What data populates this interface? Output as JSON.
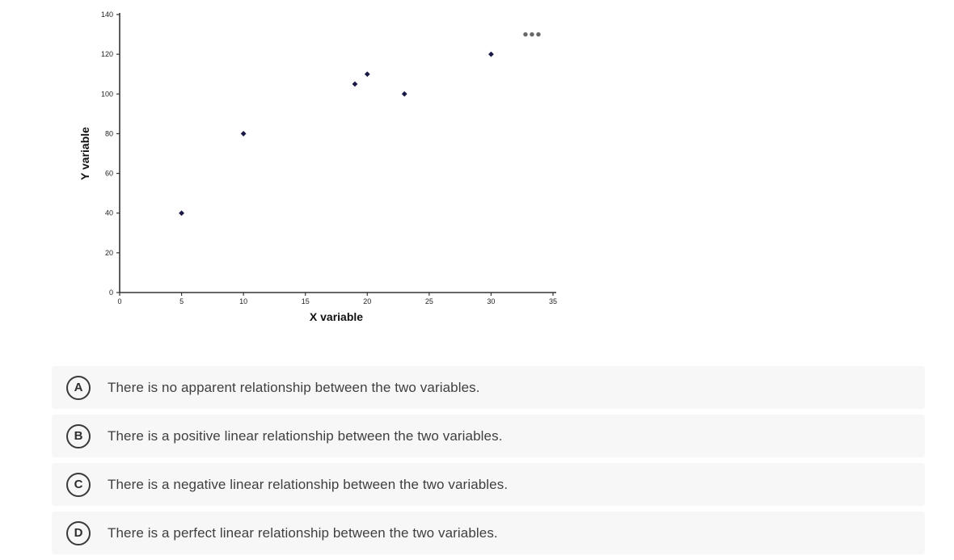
{
  "chart_data": {
    "type": "scatter",
    "title": "",
    "xlabel": "X variable",
    "ylabel": "Y variable",
    "xlim": [
      0,
      35
    ],
    "ylim": [
      0,
      140
    ],
    "xticks": [
      0,
      5,
      10,
      15,
      20,
      25,
      30,
      35
    ],
    "yticks": [
      0,
      20,
      40,
      60,
      80,
      100,
      120,
      140
    ],
    "grid": false,
    "legend": "none",
    "marker": "diamond",
    "marker_color": "#191946",
    "axis_color": "#333333",
    "tick_label_color": "#222222",
    "points": [
      {
        "x": 5,
        "y": 40
      },
      {
        "x": 10,
        "y": 80
      },
      {
        "x": 19,
        "y": 105
      },
      {
        "x": 20,
        "y": 110
      },
      {
        "x": 23,
        "y": 100
      },
      {
        "x": 30,
        "y": 120
      }
    ],
    "annotations": [
      {
        "type": "ellipsis-dots",
        "x": 33.3,
        "y": 130,
        "color": "#686868"
      }
    ]
  },
  "colors": {
    "page_background": "#ffffff",
    "option_background": "#f7f7f7",
    "option_text": "#3f3f3f",
    "badge_border": "#3a3a3a"
  },
  "options": [
    {
      "letter": "A",
      "text": "There is no apparent relationship between the two variables."
    },
    {
      "letter": "B",
      "text": "There is a positive linear relationship between the two variables."
    },
    {
      "letter": "C",
      "text": "There is a negative linear relationship between the two variables."
    },
    {
      "letter": "D",
      "text": "There is a perfect linear relationship between the two variables."
    }
  ]
}
